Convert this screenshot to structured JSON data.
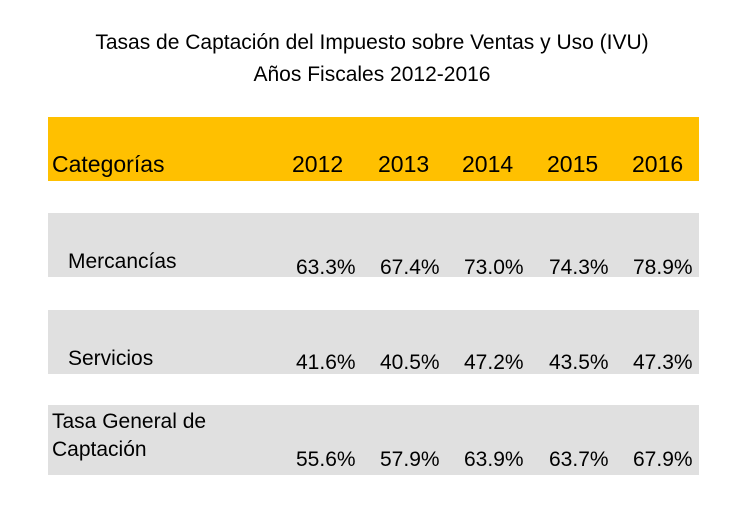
{
  "title": {
    "line1": "Tasas de Captación del Impuesto sobre Ventas y Uso (IVU)",
    "line2": "Años Fiscales 2012-2016"
  },
  "colors": {
    "header_band": "#FFC000",
    "row_band": "#E0E0E0"
  },
  "table": {
    "header_label": "Categorías",
    "years": [
      "2012",
      "2013",
      "2014",
      "2015",
      "2016"
    ],
    "rows": [
      {
        "label": "Mercancías",
        "values": [
          "63.3%",
          "67.4%",
          "73.0%",
          "74.3%",
          "78.9%"
        ]
      },
      {
        "label": "Servicios",
        "values": [
          "41.6%",
          "40.5%",
          "47.2%",
          "43.5%",
          "47.3%"
        ]
      },
      {
        "label_line1": "Tasa General de",
        "label_line2": "Captación",
        "values": [
          "55.6%",
          "57.9%",
          "63.9%",
          "63.7%",
          "67.9%"
        ]
      }
    ]
  }
}
